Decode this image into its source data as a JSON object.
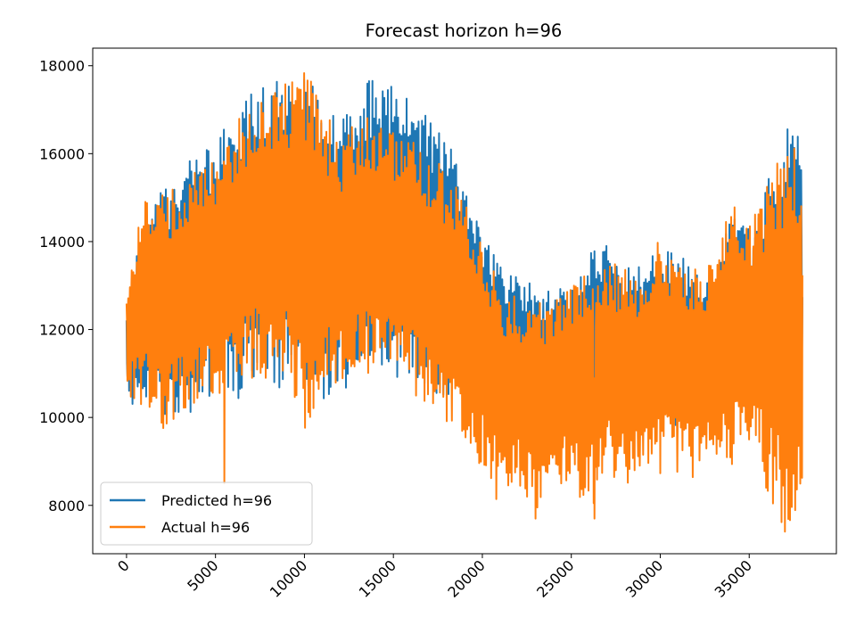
{
  "chart_data": {
    "type": "line",
    "title": "Forecast horizon h=96",
    "xlabel": "",
    "ylabel": "",
    "xlim": [
      -1900,
      39900
    ],
    "ylim": [
      6900,
      18400
    ],
    "x_ticks": [
      0,
      5000,
      10000,
      15000,
      20000,
      25000,
      30000,
      35000
    ],
    "x_tick_labels": [
      "0",
      "5000",
      "10000",
      "15000",
      "20000",
      "25000",
      "30000",
      "35000"
    ],
    "y_ticks": [
      8000,
      10000,
      12000,
      14000,
      16000,
      18000
    ],
    "y_tick_labels": [
      "8000",
      "10000",
      "12000",
      "14000",
      "16000",
      "18000"
    ],
    "grid": false,
    "legend_position": "lower-left",
    "x_range": [
      0,
      38000
    ],
    "series": [
      {
        "name": "Predicted h=96",
        "color": "#1f77b4",
        "envelope": {
          "x": [
            0,
            1000,
            2000,
            3000,
            4000,
            5000,
            6000,
            7000,
            8000,
            9000,
            10000,
            11000,
            12000,
            13000,
            14000,
            15000,
            16000,
            17000,
            18000,
            19000,
            20000,
            21000,
            22000,
            23000,
            24000,
            25000,
            26000,
            27000,
            28000,
            29000,
            30000,
            31000,
            32000,
            33000,
            34000,
            35000,
            36000,
            37000,
            38000
          ],
          "upper": [
            12500,
            14800,
            15200,
            15500,
            16100,
            16300,
            16900,
            17400,
            17600,
            17700,
            17800,
            17400,
            16600,
            17600,
            17800,
            17600,
            17300,
            16900,
            16400,
            15400,
            14200,
            13500,
            13200,
            13000,
            12900,
            13100,
            13800,
            14000,
            13600,
            13400,
            14000,
            13800,
            13300,
            13200,
            14700,
            14300,
            15400,
            16600,
            17000
          ],
          "lower": [
            10300,
            10100,
            9800,
            10000,
            10100,
            10300,
            10400,
            10500,
            10600,
            10700,
            10600,
            10400,
            10400,
            10800,
            10900,
            10900,
            10800,
            10600,
            10400,
            10200,
            9900,
            9800,
            9800,
            9800,
            9700,
            9800,
            9900,
            9800,
            9800,
            9700,
            9800,
            9800,
            9900,
            10000,
            10100,
            10200,
            10400,
            10800,
            11200
          ],
          "mid": [
            11600,
            12400,
            12700,
            12900,
            13100,
            13400,
            13800,
            14100,
            14300,
            14400,
            14500,
            14200,
            13800,
            14200,
            14400,
            14300,
            14100,
            13800,
            13500,
            12900,
            12100,
            11600,
            11400,
            11300,
            11200,
            11400,
            11700,
            11800,
            11600,
            11500,
            11800,
            11700,
            11500,
            11500,
            12200,
            12100,
            12600,
            13300,
            13800
          ]
        }
      },
      {
        "name": "Actual h=96",
        "color": "#ff7f0e",
        "envelope": {
          "x": [
            0,
            1000,
            2000,
            3000,
            4000,
            5000,
            6000,
            7000,
            8000,
            9000,
            10000,
            11000,
            12000,
            13000,
            14000,
            15000,
            16000,
            17000,
            18000,
            19000,
            20000,
            21000,
            22000,
            23000,
            24000,
            25000,
            26000,
            27000,
            28000,
            29000,
            30000,
            31000,
            32000,
            33000,
            34000,
            35000,
            36000,
            37000,
            38000
          ],
          "upper": [
            13000,
            15000,
            15100,
            15300,
            15800,
            15800,
            16700,
            17300,
            17400,
            17600,
            17900,
            17200,
            16300,
            16800,
            16900,
            16600,
            16400,
            16100,
            15600,
            14900,
            14000,
            13000,
            12700,
            12600,
            12800,
            13000,
            13500,
            13600,
            13400,
            13300,
            14300,
            13600,
            13400,
            13500,
            15300,
            14400,
            15300,
            16300,
            16200
          ],
          "lower": [
            10500,
            10200,
            9700,
            10000,
            10200,
            10300,
            10500,
            10700,
            10700,
            10600,
            9300,
            10300,
            10500,
            10900,
            10800,
            10700,
            10500,
            10200,
            9900,
            9500,
            8800,
            7900,
            8400,
            7700,
            8300,
            8500,
            7700,
            8800,
            8300,
            8500,
            8700,
            8700,
            8600,
            8800,
            8900,
            9000,
            8200,
            7400,
            8200
          ],
          "mid": [
            11800,
            12600,
            12500,
            12700,
            12900,
            13000,
            13600,
            14000,
            14000,
            14100,
            13800,
            13800,
            13400,
            13800,
            13800,
            13600,
            13400,
            13100,
            12700,
            12200,
            11400,
            10500,
            10500,
            10200,
            10500,
            10700,
            10600,
            11200,
            10800,
            10900,
            11500,
            11100,
            11000,
            11100,
            12100,
            11700,
            11700,
            11800,
            12200
          ]
        },
        "notable_spikes": [
          {
            "x": 5500,
            "y": 8500
          },
          {
            "x": 23000,
            "y": 7700
          },
          {
            "x": 26300,
            "y": 7700
          },
          {
            "x": 37000,
            "y": 7400
          }
        ]
      }
    ]
  }
}
